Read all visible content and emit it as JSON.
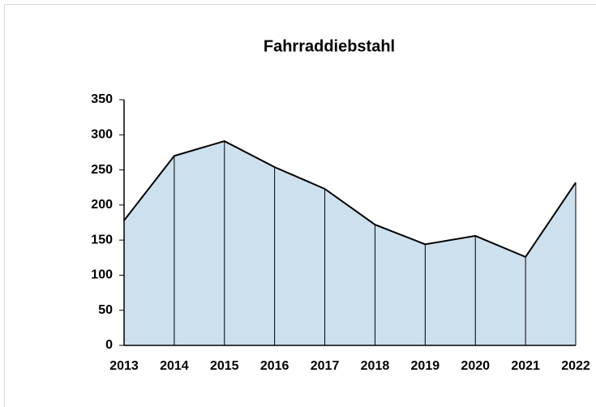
{
  "chart_data": {
    "type": "area",
    "title": "Fahrraddiebstahl",
    "categories": [
      "2013",
      "2014",
      "2015",
      "2016",
      "2017",
      "2018",
      "2019",
      "2020",
      "2021",
      "2022"
    ],
    "values": [
      178,
      270,
      291,
      254,
      223,
      172,
      144,
      156,
      126,
      232
    ],
    "color": "#cce0ee",
    "line_color": "#000000",
    "ylim": [
      0,
      350
    ],
    "yticks": [
      0,
      50,
      100,
      150,
      200,
      250,
      300,
      350
    ],
    "grid": false
  }
}
